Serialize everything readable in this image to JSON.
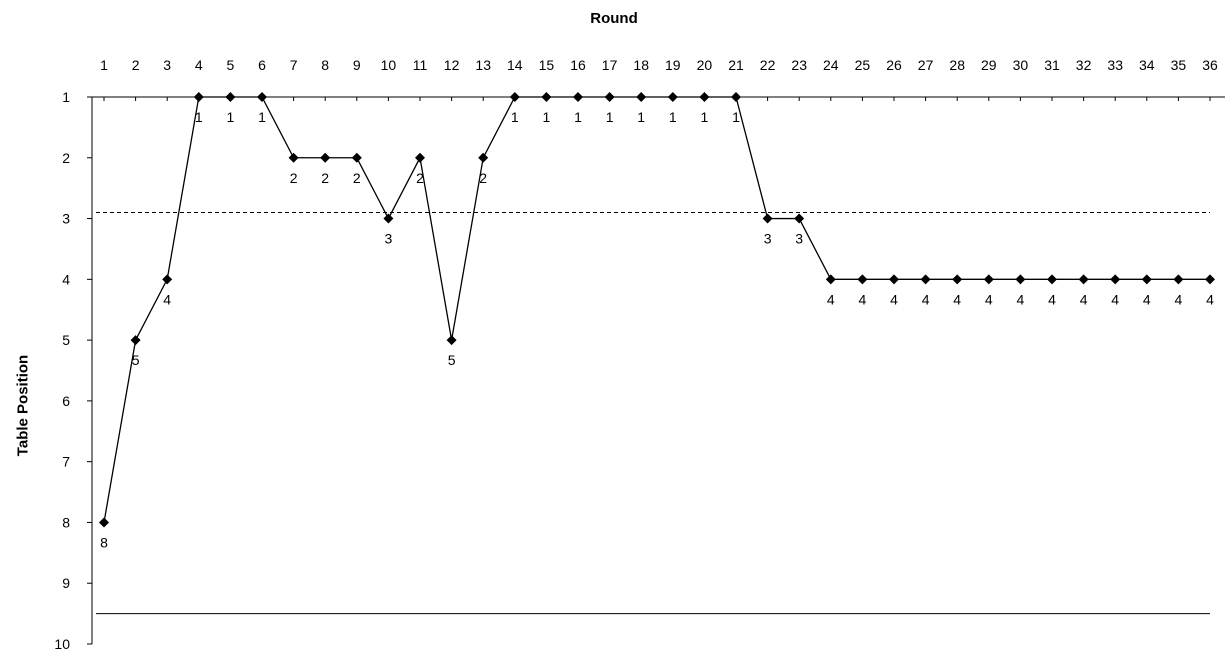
{
  "chart_data": {
    "type": "line",
    "xlabel": "Round",
    "ylabel": "Table Position",
    "x": [
      1,
      2,
      3,
      4,
      5,
      6,
      7,
      8,
      9,
      10,
      11,
      12,
      13,
      14,
      15,
      16,
      17,
      18,
      19,
      20,
      21,
      22,
      23,
      24,
      25,
      26,
      27,
      28,
      29,
      30,
      31,
      32,
      33,
      34,
      35,
      36
    ],
    "values": [
      8,
      5,
      4,
      1,
      1,
      1,
      2,
      2,
      2,
      3,
      2,
      5,
      2,
      1,
      1,
      1,
      1,
      1,
      1,
      1,
      1,
      3,
      3,
      4,
      4,
      4,
      4,
      4,
      4,
      4,
      4,
      4,
      4,
      4,
      4,
      4
    ],
    "xlim": [
      1,
      36
    ],
    "ylim": [
      1,
      10
    ],
    "y_reversed": true,
    "x_axis_position": "top",
    "y_ticks": [
      1,
      2,
      3,
      4,
      5,
      6,
      7,
      8,
      9,
      10
    ],
    "reference_lines": [
      {
        "y": 2.9,
        "style": "dashed"
      },
      {
        "y": 9.5,
        "style": "solid"
      }
    ],
    "marker": "diamond",
    "line_color": "#000000",
    "data_labels": true,
    "grid": false,
    "legend": "none"
  }
}
